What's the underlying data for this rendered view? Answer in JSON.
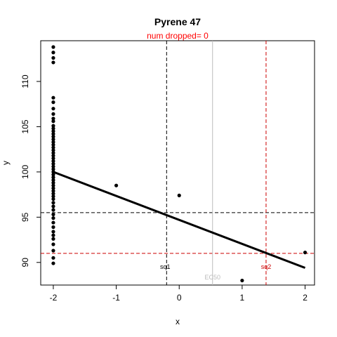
{
  "chart_data": {
    "type": "scatter",
    "title": "Pyrene 47",
    "subtitle": "num dropped= 0",
    "xlabel": "x",
    "ylabel": "y",
    "xlim": [
      -2.2,
      2.15
    ],
    "ylim": [
      87.5,
      114.5
    ],
    "x_ticks": [
      -2,
      -1,
      0,
      1,
      2
    ],
    "y_ticks": [
      90,
      95,
      100,
      105,
      110
    ],
    "grid": false,
    "points": [
      {
        "x": -2,
        "y": 113.8
      },
      {
        "x": -2,
        "y": 113.2
      },
      {
        "x": -2,
        "y": 112.6
      },
      {
        "x": -2,
        "y": 112.1
      },
      {
        "x": -2,
        "y": 108.2
      },
      {
        "x": -2,
        "y": 107.7
      },
      {
        "x": -2,
        "y": 107.0
      },
      {
        "x": -2,
        "y": 106.4
      },
      {
        "x": -2,
        "y": 105.9
      },
      {
        "x": -2,
        "y": 105.6
      },
      {
        "x": -2,
        "y": 105.1
      },
      {
        "x": -2,
        "y": 104.8
      },
      {
        "x": -2,
        "y": 104.5
      },
      {
        "x": -2,
        "y": 104.2
      },
      {
        "x": -2,
        "y": 103.9
      },
      {
        "x": -2,
        "y": 103.6
      },
      {
        "x": -2,
        "y": 103.3
      },
      {
        "x": -2,
        "y": 103.0
      },
      {
        "x": -2,
        "y": 102.7
      },
      {
        "x": -2,
        "y": 102.4
      },
      {
        "x": -2,
        "y": 102.1
      },
      {
        "x": -2,
        "y": 101.8
      },
      {
        "x": -2,
        "y": 101.5
      },
      {
        "x": -2,
        "y": 101.2
      },
      {
        "x": -2,
        "y": 100.9
      },
      {
        "x": -2,
        "y": 100.6
      },
      {
        "x": -2,
        "y": 100.3
      },
      {
        "x": -2,
        "y": 100.0
      },
      {
        "x": -2,
        "y": 99.7
      },
      {
        "x": -2,
        "y": 99.4
      },
      {
        "x": -2,
        "y": 99.1
      },
      {
        "x": -2,
        "y": 98.8
      },
      {
        "x": -2,
        "y": 98.5
      },
      {
        "x": -2,
        "y": 98.2
      },
      {
        "x": -2,
        "y": 97.9
      },
      {
        "x": -2,
        "y": 97.6
      },
      {
        "x": -2,
        "y": 97.3
      },
      {
        "x": -2,
        "y": 97.0
      },
      {
        "x": -2,
        "y": 96.6
      },
      {
        "x": -2,
        "y": 96.2
      },
      {
        "x": -2,
        "y": 95.8
      },
      {
        "x": -2,
        "y": 95.3
      },
      {
        "x": -2,
        "y": 94.9
      },
      {
        "x": -2,
        "y": 94.4
      },
      {
        "x": -2,
        "y": 93.9
      },
      {
        "x": -2,
        "y": 93.4
      },
      {
        "x": -2,
        "y": 93.0
      },
      {
        "x": -2,
        "y": 92.6
      },
      {
        "x": -2,
        "y": 92.0
      },
      {
        "x": -2,
        "y": 91.3
      },
      {
        "x": -2,
        "y": 90.5
      },
      {
        "x": -2,
        "y": 89.9
      },
      {
        "x": -1,
        "y": 98.5
      },
      {
        "x": 0,
        "y": 97.4
      },
      {
        "x": 1,
        "y": 88.0
      },
      {
        "x": 2,
        "y": 91.1
      }
    ],
    "fit_line": [
      {
        "x": -2,
        "y": 100.0
      },
      {
        "x": 2,
        "y": 89.4
      }
    ],
    "reference_lines": [
      {
        "orientation": "horizontal",
        "y": 95.5,
        "color": "#000000",
        "style": "dashed"
      },
      {
        "orientation": "horizontal",
        "y": 91.0,
        "color": "#cc0000",
        "style": "dashed"
      },
      {
        "orientation": "vertical",
        "x": -0.2,
        "color": "#000000",
        "style": "dashed",
        "label": "sq1"
      },
      {
        "orientation": "vertical",
        "x": 0.53,
        "color": "#bbbbbb",
        "style": "solid",
        "label": "EC50"
      },
      {
        "orientation": "vertical",
        "x": 1.38,
        "color": "#cc0000",
        "style": "dashed",
        "label": "sq2"
      }
    ],
    "colors": {
      "points": "#000000",
      "fit": "#000000",
      "subtitle": "#ff0000",
      "ec50": "#bbbbbb",
      "sq2": "#cc0000"
    }
  }
}
